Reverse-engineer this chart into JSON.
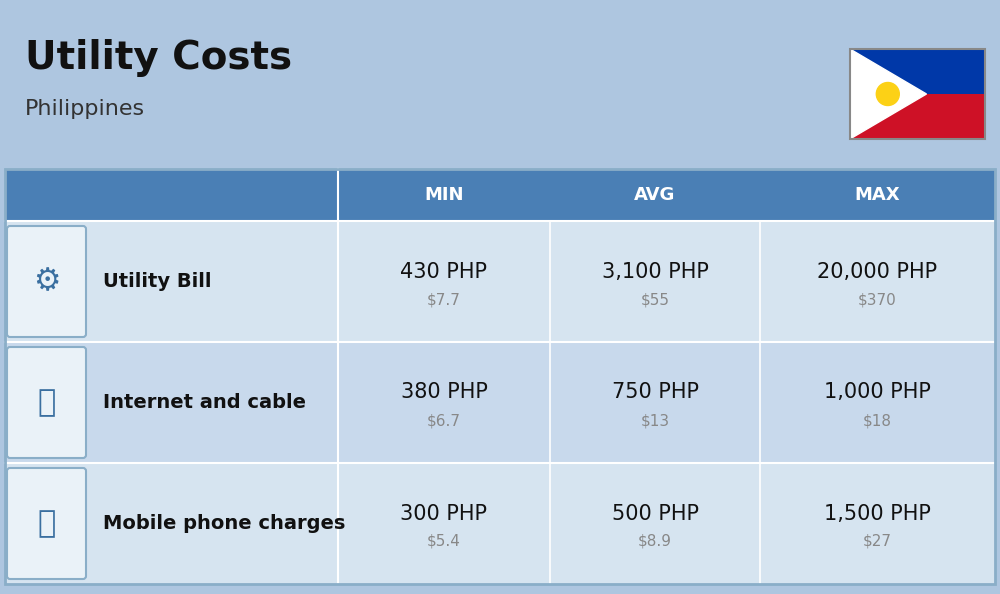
{
  "title": "Utility Costs",
  "subtitle": "Philippines",
  "background_color": "#aec6e0",
  "header_bg_color": "#4a7fb5",
  "header_text_color": "#ffffff",
  "row_bg_color_1": "#d6e4f0",
  "row_bg_color_2": "#c8d9ec",
  "col_header": [
    "MIN",
    "AVG",
    "MAX"
  ],
  "rows": [
    {
      "label": "Utility Bill",
      "min_php": "430 PHP",
      "min_usd": "$7.7",
      "avg_php": "3,100 PHP",
      "avg_usd": "$55",
      "max_php": "20,000 PHP",
      "max_usd": "$370"
    },
    {
      "label": "Internet and cable",
      "min_php": "380 PHP",
      "min_usd": "$6.7",
      "avg_php": "750 PHP",
      "avg_usd": "$13",
      "max_php": "1,000 PHP",
      "max_usd": "$18"
    },
    {
      "label": "Mobile phone charges",
      "min_php": "300 PHP",
      "min_usd": "$5.4",
      "avg_php": "500 PHP",
      "avg_usd": "$8.9",
      "max_php": "1,500 PHP",
      "max_usd": "$27"
    }
  ],
  "icon_texts": [
    "⚡️",
    "📡",
    "📱"
  ],
  "php_fontsize": 15,
  "usd_fontsize": 11,
  "label_fontsize": 14,
  "header_fontsize": 13
}
